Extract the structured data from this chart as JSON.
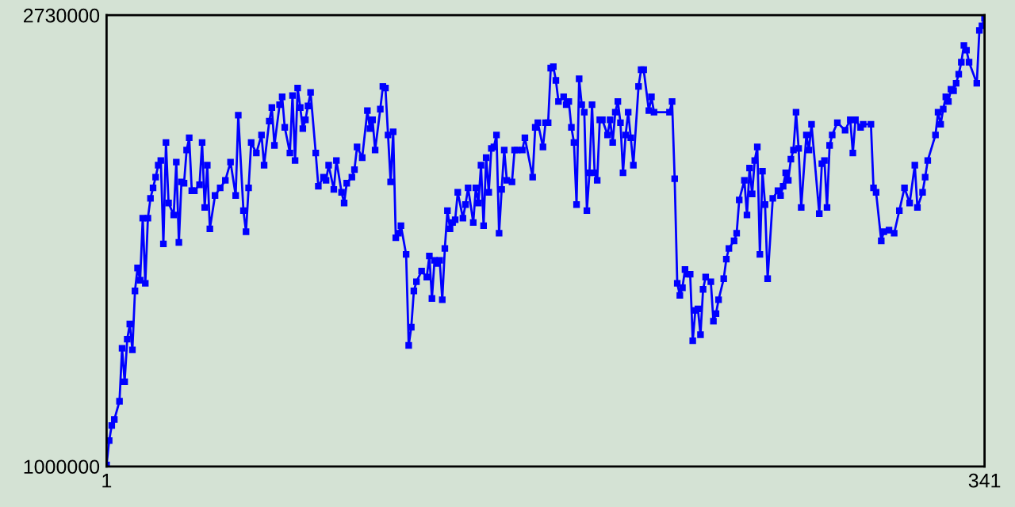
{
  "chart_data": {
    "type": "line",
    "x": [
      1,
      2,
      3,
      4,
      6,
      7,
      8,
      9,
      10,
      11,
      12,
      13,
      14,
      15,
      16,
      17,
      18,
      19,
      20,
      21,
      22,
      23,
      24,
      25,
      27,
      28,
      29,
      30,
      31,
      32,
      33,
      34,
      35,
      37,
      38,
      39,
      40,
      41,
      43,
      45,
      47,
      49,
      51,
      52,
      54,
      55,
      56,
      57,
      59,
      61,
      62,
      64,
      65,
      66,
      68,
      69,
      70,
      72,
      73,
      74,
      75,
      76,
      77,
      78,
      79,
      80,
      82,
      83,
      85,
      86,
      87,
      89,
      90,
      92,
      93,
      94,
      96,
      97,
      98,
      100,
      102,
      103,
      104,
      105,
      107,
      108,
      109,
      110,
      111,
      112,
      113,
      114,
      115,
      117,
      118,
      119,
      120,
      121,
      123,
      125,
      126,
      127,
      128,
      129,
      130,
      131,
      132,
      133,
      134,
      135,
      136,
      137,
      139,
      140,
      141,
      143,
      144,
      145,
      146,
      147,
      148,
      149,
      150,
      151,
      152,
      153,
      154,
      155,
      156,
      158,
      159,
      160,
      162,
      163,
      166,
      167,
      168,
      170,
      171,
      172,
      173,
      174,
      175,
      176,
      178,
      179,
      180,
      181,
      182,
      183,
      184,
      185,
      186,
      187,
      188,
      189,
      190,
      191,
      192,
      193,
      195,
      196,
      197,
      198,
      199,
      200,
      201,
      202,
      203,
      204,
      205,
      207,
      208,
      209,
      211,
      212,
      213,
      219,
      220,
      221,
      222,
      223,
      224,
      225,
      226,
      227,
      228,
      229,
      230,
      231,
      232,
      233,
      235,
      236,
      237,
      238,
      240,
      241,
      242,
      244,
      245,
      246,
      248,
      249,
      250,
      251,
      252,
      253,
      254,
      255,
      256,
      257,
      259,
      261,
      262,
      263,
      264,
      265,
      266,
      267,
      268,
      269,
      270,
      272,
      273,
      274,
      277,
      278,
      279,
      280,
      281,
      282,
      284,
      287,
      289,
      290,
      291,
      293,
      294,
      297,
      298,
      299,
      301,
      302,
      304,
      306,
      308,
      310,
      312,
      314,
      315,
      317,
      318,
      319,
      322,
      323,
      324,
      325,
      326,
      327,
      328,
      329,
      330,
      331,
      332,
      333,
      334,
      335,
      338,
      339,
      340,
      341
    ],
    "series": [
      {
        "color": "#0000ff",
        "values": [
          1006000,
          1099000,
          1157000,
          1180000,
          1250000,
          1453000,
          1325000,
          1488000,
          1546000,
          1447000,
          1673000,
          1761000,
          1714000,
          1952000,
          1702000,
          1952000,
          2028000,
          2068000,
          2109000,
          2155000,
          2173000,
          1853000,
          2242000,
          2010000,
          1964000,
          2167000,
          1859000,
          2091000,
          2086000,
          2213000,
          2260000,
          2057000,
          2057000,
          2080000,
          2242000,
          1993000,
          2155000,
          1911000,
          2039000,
          2068000,
          2097000,
          2167000,
          2039000,
          2347000,
          1981000,
          1900000,
          2068000,
          2242000,
          2202000,
          2271000,
          2155000,
          2324000,
          2376000,
          2231000,
          2387000,
          2417000,
          2300000,
          2202000,
          2422000,
          2173000,
          2451000,
          2376000,
          2295000,
          2329000,
          2382000,
          2434000,
          2202000,
          2074000,
          2109000,
          2097000,
          2155000,
          2062000,
          2173000,
          2051000,
          2010000,
          2086000,
          2109000,
          2138000,
          2225000,
          2184000,
          2364000,
          2295000,
          2329000,
          2213000,
          2370000,
          2457000,
          2451000,
          2271000,
          2091000,
          2283000,
          1877000,
          1894000,
          1923000,
          1813000,
          1464000,
          1534000,
          1673000,
          1708000,
          1749000,
          1726000,
          1807000,
          1644000,
          1790000,
          1778000,
          1790000,
          1639000,
          1836000,
          1981000,
          1911000,
          1935000,
          1946000,
          2051000,
          1952000,
          2004000,
          2068000,
          1935000,
          2068000,
          2010000,
          2155000,
          1923000,
          2184000,
          2051000,
          2219000,
          2225000,
          2271000,
          1894000,
          2062000,
          2213000,
          2097000,
          2091000,
          2213000,
          2213000,
          2213000,
          2260000,
          2109000,
          2300000,
          2318000,
          2225000,
          2318000,
          2318000,
          2527000,
          2533000,
          2480000,
          2399000,
          2417000,
          2387000,
          2399000,
          2300000,
          2242000,
          2004000,
          2486000,
          2387000,
          2358000,
          1981000,
          2126000,
          2387000,
          2126000,
          2097000,
          2329000,
          2329000,
          2271000,
          2329000,
          2242000,
          2358000,
          2399000,
          2318000,
          2126000,
          2271000,
          2358000,
          2260000,
          2155000,
          2457000,
          2521000,
          2521000,
          2364000,
          2417000,
          2358000,
          2358000,
          2399000,
          2103000,
          1702000,
          1656000,
          1685000,
          1755000,
          1737000,
          1737000,
          1482000,
          1598000,
          1604000,
          1505000,
          1679000,
          1726000,
          1708000,
          1557000,
          1586000,
          1639000,
          1720000,
          1795000,
          1836000,
          1865000,
          1894000,
          2022000,
          2097000,
          1964000,
          2144000,
          2045000,
          2173000,
          2225000,
          1813000,
          2132000,
          2004000,
          1720000,
          2028000,
          2057000,
          2039000,
          2074000,
          2126000,
          2097000,
          2178000,
          2213000,
          2358000,
          2219000,
          1993000,
          2271000,
          2213000,
          2312000,
          1969000,
          2161000,
          2173000,
          1993000,
          2231000,
          2271000,
          2318000,
          2289000,
          2329000,
          2202000,
          2329000,
          2300000,
          2312000,
          2312000,
          2068000,
          2051000,
          1865000,
          1900000,
          1906000,
          1894000,
          1981000,
          2068000,
          2010000,
          2155000,
          1993000,
          2051000,
          2109000,
          2173000,
          2271000,
          2358000,
          2312000,
          2370000,
          2417000,
          2399000,
          2446000,
          2440000,
          2469000,
          2504000,
          2550000,
          2614000,
          2596000,
          2550000,
          2469000,
          2672000,
          2689000,
          2718000
        ]
      }
    ],
    "xlim": [
      1,
      341
    ],
    "xticks": [
      1,
      341
    ],
    "ylim": [
      1000000,
      2730000
    ],
    "yticks": [
      1000000,
      2730000
    ],
    "legend": false,
    "marker": "square",
    "line_style": "solid"
  }
}
